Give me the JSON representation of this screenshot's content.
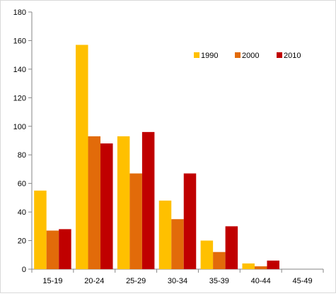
{
  "chart_data": {
    "type": "bar",
    "categories": [
      "15-19",
      "20-24",
      "25-29",
      "30-34",
      "35-39",
      "40-44",
      "45-49"
    ],
    "series": [
      {
        "name": "1990",
        "color": "#ffc000",
        "values": [
          55,
          157,
          93,
          48,
          20,
          4,
          0
        ]
      },
      {
        "name": "2000",
        "color": "#e26b0a",
        "values": [
          27,
          93,
          67,
          35,
          12,
          2,
          0
        ]
      },
      {
        "name": "2010",
        "color": "#c00000",
        "values": [
          28,
          88,
          96,
          67,
          30,
          6,
          0
        ]
      }
    ],
    "ylim": [
      0,
      180
    ],
    "yticks": [
      0,
      20,
      40,
      60,
      80,
      100,
      120,
      140,
      160,
      180
    ],
    "grid": false,
    "legend_position": "top-right"
  }
}
